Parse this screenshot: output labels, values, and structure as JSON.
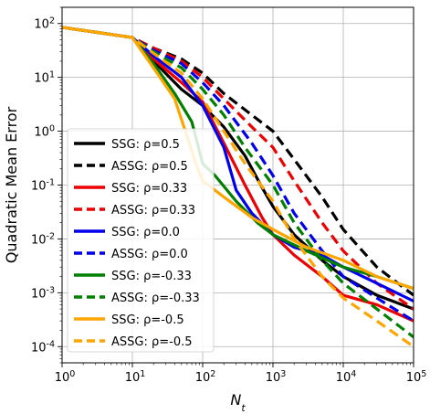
{
  "chart_data": {
    "type": "line",
    "xlabel": "N_t",
    "ylabel": "Quadratic Mean Error",
    "xscale": "log",
    "yscale": "log",
    "xlim": [
      1,
      100000
    ],
    "ylim": [
      5e-05,
      200
    ],
    "x_ticks": [
      {
        "value": 1,
        "exp": "0"
      },
      {
        "value": 10,
        "exp": "1"
      },
      {
        "value": 100,
        "exp": "2"
      },
      {
        "value": 1000,
        "exp": "3"
      },
      {
        "value": 10000,
        "exp": "4"
      },
      {
        "value": 100000,
        "exp": "5"
      }
    ],
    "y_ticks": [
      {
        "value": 0.0001,
        "exp": "-4"
      },
      {
        "value": 0.001,
        "exp": "-3"
      },
      {
        "value": 0.01,
        "exp": "-2"
      },
      {
        "value": 0.1,
        "exp": "-1"
      },
      {
        "value": 1,
        "exp": "0"
      },
      {
        "value": 10,
        "exp": "1"
      },
      {
        "value": 100,
        "exp": "2"
      }
    ],
    "tick_base": "10",
    "grid": true,
    "legend_position": "lower-left",
    "series": [
      {
        "name": "SSG: ρ=0.5",
        "color": "#000000",
        "dash": "solid",
        "points": [
          [
            1,
            85
          ],
          [
            10,
            55
          ],
          [
            20,
            20
          ],
          [
            50,
            6
          ],
          [
            100,
            3
          ],
          [
            200,
            1.2
          ],
          [
            400,
            0.35
          ],
          [
            700,
            0.09
          ],
          [
            1000,
            0.04
          ],
          [
            2000,
            0.012
          ],
          [
            5000,
            0.004
          ],
          [
            10000,
            0.002
          ],
          [
            30000,
            0.0009
          ],
          [
            100000,
            0.0005
          ]
        ]
      },
      {
        "name": "ASSG: ρ=0.5",
        "color": "#000000",
        "dash": "dashed",
        "points": [
          [
            1,
            85
          ],
          [
            10,
            55
          ],
          [
            20,
            35
          ],
          [
            50,
            22
          ],
          [
            100,
            12
          ],
          [
            200,
            5
          ],
          [
            500,
            2
          ],
          [
            1000,
            1
          ],
          [
            2000,
            0.3
          ],
          [
            5000,
            0.06
          ],
          [
            10000,
            0.015
          ],
          [
            30000,
            0.003
          ],
          [
            100000,
            0.0009
          ]
        ]
      },
      {
        "name": "SSG: ρ=0.33",
        "color": "#ee0000",
        "dash": "solid",
        "points": [
          [
            1,
            85
          ],
          [
            10,
            55
          ],
          [
            20,
            22
          ],
          [
            50,
            8
          ],
          [
            100,
            3.5
          ],
          [
            200,
            0.6
          ],
          [
            400,
            0.1
          ],
          [
            700,
            0.025
          ],
          [
            1000,
            0.012
          ],
          [
            2000,
            0.005
          ],
          [
            5000,
            0.002
          ],
          [
            10000,
            0.0009
          ],
          [
            30000,
            0.0006
          ],
          [
            100000,
            0.0003
          ]
        ]
      },
      {
        "name": "ASSG: ρ=0.33",
        "color": "#ee0000",
        "dash": "dashed",
        "points": [
          [
            1,
            85
          ],
          [
            10,
            55
          ],
          [
            20,
            35
          ],
          [
            50,
            20
          ],
          [
            100,
            10
          ],
          [
            200,
            4
          ],
          [
            500,
            1.2
          ],
          [
            1000,
            0.5
          ],
          [
            2000,
            0.12
          ],
          [
            5000,
            0.02
          ],
          [
            10000,
            0.006
          ],
          [
            30000,
            0.0015
          ],
          [
            100000,
            0.0005
          ]
        ]
      },
      {
        "name": "SSG: ρ=0.0",
        "color": "#0000ee",
        "dash": "solid",
        "points": [
          [
            1,
            85
          ],
          [
            10,
            55
          ],
          [
            20,
            25
          ],
          [
            50,
            10
          ],
          [
            100,
            3
          ],
          [
            200,
            0.5
          ],
          [
            300,
            0.08
          ],
          [
            500,
            0.03
          ],
          [
            1000,
            0.012
          ],
          [
            2000,
            0.007
          ],
          [
            5000,
            0.005
          ],
          [
            10000,
            0.003
          ],
          [
            30000,
            0.0015
          ],
          [
            100000,
            0.0007
          ]
        ]
      },
      {
        "name": "ASSG: ρ=0.0",
        "color": "#0000ee",
        "dash": "dashed",
        "points": [
          [
            1,
            85
          ],
          [
            10,
            55
          ],
          [
            20,
            32
          ],
          [
            50,
            18
          ],
          [
            100,
            8
          ],
          [
            200,
            3
          ],
          [
            500,
            0.6
          ],
          [
            1000,
            0.15
          ],
          [
            2000,
            0.03
          ],
          [
            5000,
            0.006
          ],
          [
            10000,
            0.002
          ],
          [
            30000,
            0.0008
          ],
          [
            100000,
            0.0003
          ]
        ]
      },
      {
        "name": "SSG: ρ=-0.33",
        "color": "#008000",
        "dash": "solid",
        "points": [
          [
            1,
            85
          ],
          [
            10,
            55
          ],
          [
            20,
            18
          ],
          [
            40,
            5
          ],
          [
            70,
            1.5
          ],
          [
            100,
            0.25
          ],
          [
            150,
            0.15
          ],
          [
            300,
            0.05
          ],
          [
            600,
            0.02
          ],
          [
            1000,
            0.012
          ],
          [
            3000,
            0.006
          ],
          [
            10000,
            0.003
          ],
          [
            30000,
            0.002
          ],
          [
            100000,
            0.0012
          ]
        ]
      },
      {
        "name": "ASSG: ρ=-0.33",
        "color": "#008000",
        "dash": "dashed",
        "points": [
          [
            1,
            85
          ],
          [
            10,
            55
          ],
          [
            20,
            30
          ],
          [
            50,
            15
          ],
          [
            100,
            6
          ],
          [
            200,
            2
          ],
          [
            400,
            0.5
          ],
          [
            1000,
            0.1
          ],
          [
            2000,
            0.02
          ],
          [
            5000,
            0.004
          ],
          [
            10000,
            0.0015
          ],
          [
            30000,
            0.0005
          ],
          [
            100000,
            0.00015
          ]
        ]
      },
      {
        "name": "SSG: ρ=-0.5",
        "color": "#ffa500",
        "dash": "solid",
        "points": [
          [
            1,
            85
          ],
          [
            10,
            55
          ],
          [
            20,
            15
          ],
          [
            40,
            4
          ],
          [
            60,
            0.8
          ],
          [
            80,
            0.25
          ],
          [
            100,
            0.12
          ],
          [
            200,
            0.06
          ],
          [
            500,
            0.025
          ],
          [
            1000,
            0.015
          ],
          [
            3000,
            0.007
          ],
          [
            10000,
            0.004
          ],
          [
            30000,
            0.002
          ],
          [
            100000,
            0.0012
          ]
        ]
      },
      {
        "name": "ASSG: ρ=-0.5",
        "color": "#ffa500",
        "dash": "dashed",
        "points": [
          [
            1,
            85
          ],
          [
            10,
            55
          ],
          [
            20,
            28
          ],
          [
            50,
            12
          ],
          [
            100,
            4
          ],
          [
            200,
            1
          ],
          [
            400,
            0.25
          ],
          [
            1000,
            0.05
          ],
          [
            2000,
            0.01
          ],
          [
            5000,
            0.002
          ],
          [
            10000,
            0.0008
          ],
          [
            30000,
            0.0003
          ],
          [
            100000,
            0.0001
          ]
        ]
      }
    ]
  }
}
